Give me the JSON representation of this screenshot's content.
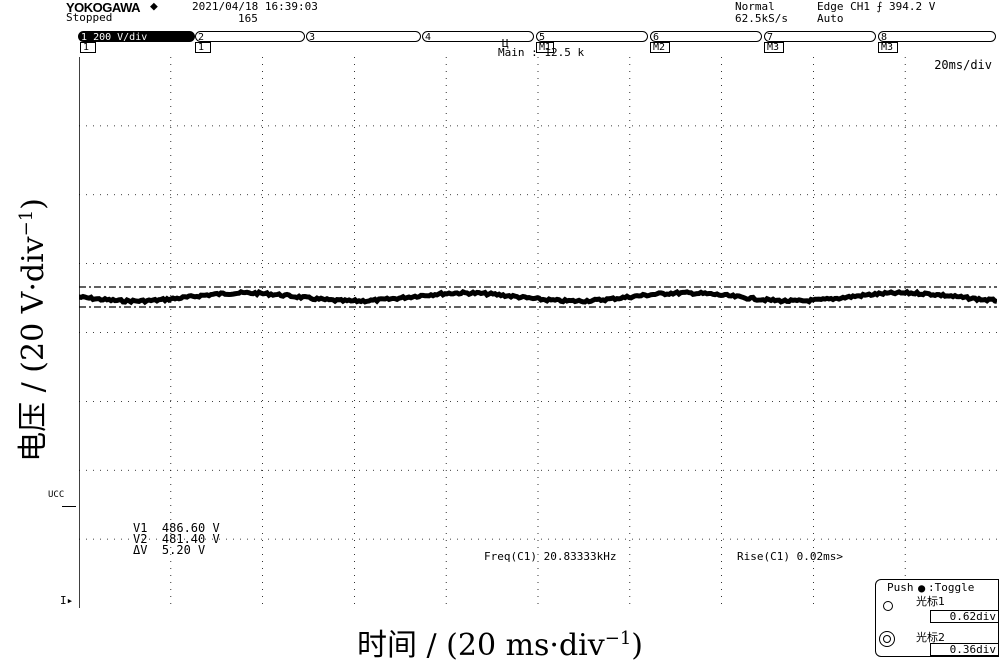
{
  "header": {
    "brand": "YOKOGAWA",
    "status": "Stopped",
    "datetime": "2021/04/18 16:39:03",
    "count": "165",
    "mode": "Normal",
    "sample_rate": "62.5kS/s",
    "trigger": "Edge CH1 ⨍ 394.2 V",
    "trigger_mode": "Auto"
  },
  "tabs": [
    {
      "num": "1",
      "label": "200 V/div",
      "sub": "1"
    },
    {
      "num": "2",
      "label": "",
      "sub": "1"
    },
    {
      "num": "3",
      "label": "",
      "sub": ""
    },
    {
      "num": "4",
      "label": "",
      "sub": ""
    },
    {
      "num": "5",
      "label": "",
      "sub": "M1"
    },
    {
      "num": "6",
      "label": "",
      "sub": "M2"
    },
    {
      "num": "7",
      "label": "",
      "sub": "M3"
    },
    {
      "num": "8",
      "label": "",
      "sub": "M3"
    }
  ],
  "main_info": "Main : 12.5 k",
  "timebase": "20ms/div",
  "left_label": "UCC",
  "cursor_readout": {
    "v1_label": "V1",
    "v1": "486.60 V",
    "v2_label": "V2",
    "v2": "481.40 V",
    "dv_label": "ΔV",
    "dv": "5.20 V"
  },
  "freq": "Freq(C1)  20.83333kHz",
  "rise": "Rise(C1)  0.02ms>",
  "cursor_panel": {
    "title": "Push",
    "toggle": ":Toggle",
    "cursor1": "光标1",
    "cursor1_val": "0.62div",
    "cursor2": "光标2",
    "cursor2_val": "0.36div"
  },
  "axis": {
    "x_title": "时间 / (20 ms·div",
    "x_sup": "−1",
    "x_close": ")",
    "y_title": "电压 / (20 V·div",
    "y_sup": "−1",
    "y_close": ")"
  },
  "colors": {
    "trace": "#000000",
    "grid": "#000000",
    "background": "#ffffff"
  }
}
